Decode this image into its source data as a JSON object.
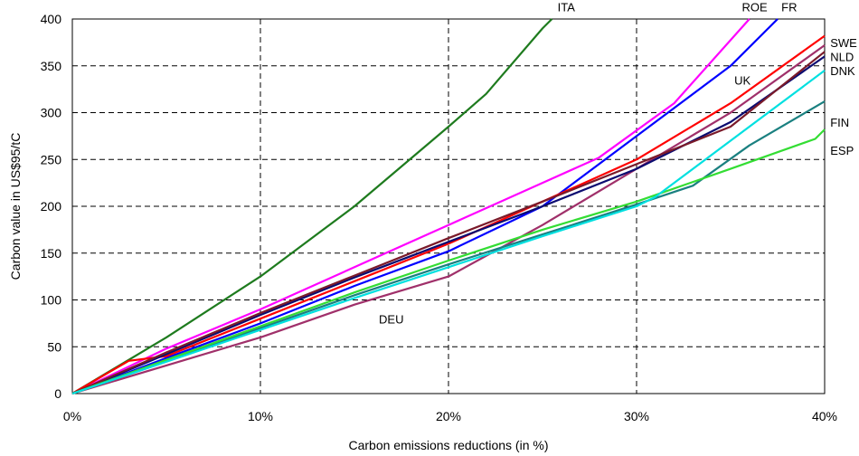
{
  "chart_data": {
    "type": "line",
    "xlabel": "Carbon emissions reductions (in %)",
    "ylabel": "Carbon value in US$95/tC",
    "xlim": [
      0,
      40
    ],
    "ylim": [
      0,
      400
    ],
    "x_ticks": [
      "0%",
      "10%",
      "20%",
      "30%",
      "40%"
    ],
    "y_ticks": [
      "0",
      "50",
      "100",
      "150",
      "200",
      "250",
      "300",
      "350",
      "400"
    ],
    "grid": true,
    "series": [
      {
        "name": "ITA",
        "color": "#1e7b1e",
        "points": [
          [
            0,
            0
          ],
          [
            5,
            60
          ],
          [
            10,
            125
          ],
          [
            15,
            200
          ],
          [
            20,
            285
          ],
          [
            22,
            320
          ],
          [
            25,
            390
          ],
          [
            25.5,
            400
          ]
        ]
      },
      {
        "name": "ROE",
        "color": "#ff00ff",
        "points": [
          [
            0,
            0
          ],
          [
            5,
            48
          ],
          [
            10,
            90
          ],
          [
            15,
            135
          ],
          [
            20,
            180
          ],
          [
            25,
            225
          ],
          [
            28,
            252
          ],
          [
            32,
            310
          ],
          [
            36,
            400
          ]
        ]
      },
      {
        "name": "FR",
        "color": "#0000ff",
        "points": [
          [
            0,
            0
          ],
          [
            5,
            38
          ],
          [
            10,
            75
          ],
          [
            15,
            115
          ],
          [
            20,
            152
          ],
          [
            25,
            200
          ],
          [
            30,
            275
          ],
          [
            35,
            350
          ],
          [
            37.5,
            400
          ]
        ]
      },
      {
        "name": "SWE",
        "color": "#ff0000",
        "points": [
          [
            0,
            0
          ],
          [
            3,
            35
          ],
          [
            5,
            40
          ],
          [
            10,
            80
          ],
          [
            15,
            120
          ],
          [
            20,
            160
          ],
          [
            25,
            205
          ],
          [
            30,
            250
          ],
          [
            35,
            310
          ],
          [
            40,
            382
          ]
        ]
      },
      {
        "name": "NLD",
        "color": "#a0306a",
        "points": [
          [
            0,
            0
          ],
          [
            5,
            30
          ],
          [
            10,
            60
          ],
          [
            15,
            95
          ],
          [
            20,
            125
          ],
          [
            25,
            180
          ],
          [
            30,
            240
          ],
          [
            35,
            300
          ],
          [
            40,
            372
          ]
        ]
      },
      {
        "name": "DNK",
        "color": "#0b0b70",
        "points": [
          [
            0,
            0
          ],
          [
            5,
            42
          ],
          [
            10,
            84
          ],
          [
            15,
            124
          ],
          [
            20,
            162
          ],
          [
            25,
            200
          ],
          [
            30,
            240
          ],
          [
            35,
            290
          ],
          [
            40,
            360
          ]
        ]
      },
      {
        "name": "UK",
        "color": "#7a1a2a",
        "points": [
          [
            0,
            0
          ],
          [
            5,
            44
          ],
          [
            10,
            86
          ],
          [
            15,
            126
          ],
          [
            20,
            166
          ],
          [
            25,
            205
          ],
          [
            30,
            245
          ],
          [
            35,
            285
          ],
          [
            40,
            365
          ]
        ]
      },
      {
        "name": "FIN",
        "color": "#1a8080",
        "points": [
          [
            0,
            0
          ],
          [
            5,
            35
          ],
          [
            10,
            70
          ],
          [
            15,
            105
          ],
          [
            20,
            138
          ],
          [
            25,
            170
          ],
          [
            30,
            202
          ],
          [
            33,
            222
          ],
          [
            36,
            265
          ],
          [
            40,
            312
          ]
        ]
      },
      {
        "name": "ESP",
        "color": "#33dd33",
        "points": [
          [
            0,
            0
          ],
          [
            5,
            36
          ],
          [
            10,
            72
          ],
          [
            15,
            108
          ],
          [
            20,
            142
          ],
          [
            25,
            175
          ],
          [
            30,
            205
          ],
          [
            35,
            240
          ],
          [
            39.5,
            272
          ],
          [
            40,
            282
          ]
        ]
      },
      {
        "name": "DEU",
        "color": "#00e0e0",
        "points": [
          [
            0,
            0
          ],
          [
            5,
            34
          ],
          [
            10,
            68
          ],
          [
            15,
            102
          ],
          [
            20,
            135
          ],
          [
            25,
            168
          ],
          [
            30,
            200
          ],
          [
            31,
            210
          ],
          [
            35,
            270
          ],
          [
            40,
            345
          ]
        ]
      }
    ],
    "labels": [
      {
        "text": "ITA",
        "x": 25.8,
        "y": 408
      },
      {
        "text": "ROE",
        "x": 35.6,
        "y": 408
      },
      {
        "text": "FR",
        "x": 37.7,
        "y": 408
      },
      {
        "text": "SWE",
        "x": 40.3,
        "y": 370
      },
      {
        "text": "NLD",
        "x": 40.3,
        "y": 355
      },
      {
        "text": "DNK",
        "x": 40.3,
        "y": 340
      },
      {
        "text": "UK",
        "x": 35.2,
        "y": 330
      },
      {
        "text": "FIN",
        "x": 40.3,
        "y": 285
      },
      {
        "text": "ESP",
        "x": 40.3,
        "y": 255
      },
      {
        "text": "DEU",
        "x": 16.3,
        "y": 75
      }
    ]
  }
}
